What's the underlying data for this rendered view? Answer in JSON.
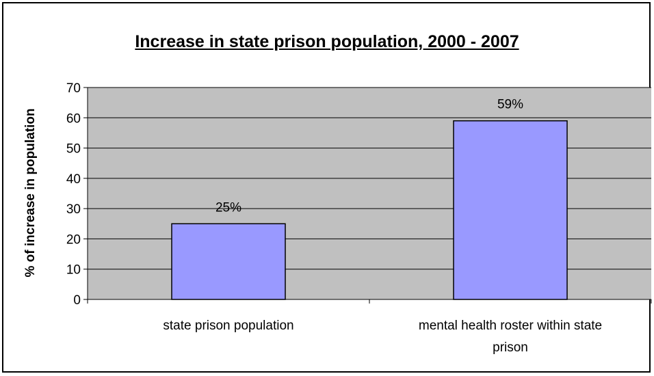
{
  "chart_data": {
    "type": "bar",
    "title": "Increase in state prison population, 2000 - 2007",
    "xlabel": "",
    "ylabel": "% of increase in population",
    "categories": [
      "state prison population",
      "mental health roster within state prison"
    ],
    "category_lines": [
      [
        "state prison population"
      ],
      [
        "mental health roster within state",
        "prison"
      ]
    ],
    "values": [
      25,
      59
    ],
    "data_labels": [
      "25%",
      "59%"
    ],
    "ylim": [
      0,
      70
    ],
    "yticks": [
      0,
      10,
      20,
      30,
      40,
      50,
      60,
      70
    ],
    "grid": true,
    "legend": "none",
    "colors": {
      "bar_fill": "#9999ff",
      "bar_stroke": "#000000",
      "plot_background": "#c0c0c0",
      "gridline": "#000000"
    }
  }
}
